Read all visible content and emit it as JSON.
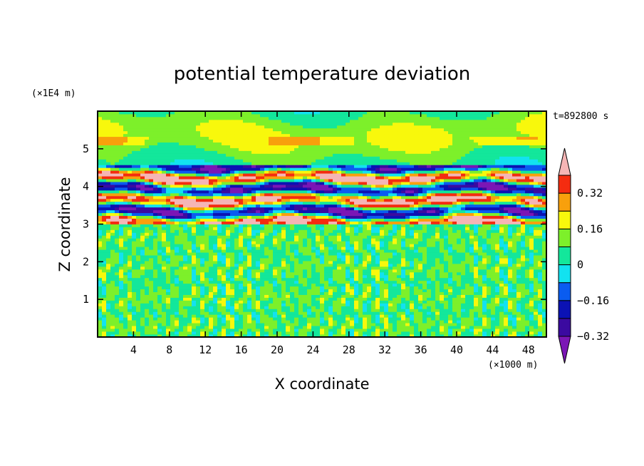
{
  "chart_data": {
    "type": "heatmap",
    "title": "potential temperature deviation",
    "xlabel": "X coordinate",
    "ylabel": "Z coordinate",
    "x_unit": "(×1000 m)",
    "y_unit": "(×1E4 m)",
    "time_label": "t=892800 s",
    "xlim": [
      0,
      50
    ],
    "ylim": [
      0,
      6
    ],
    "x_ticks": [
      4,
      8,
      12,
      16,
      20,
      24,
      28,
      32,
      36,
      40,
      44,
      48
    ],
    "y_ticks": [
      1,
      2,
      3,
      4,
      5
    ],
    "colorbar": {
      "levels": [
        -0.4,
        -0.32,
        -0.24,
        -0.16,
        -0.08,
        0,
        0.08,
        0.16,
        0.24,
        0.32,
        0.4
      ],
      "tick_labels": [
        {
          "value": 0.32,
          "label": "0.32"
        },
        {
          "value": 0.16,
          "label": "0.16"
        },
        {
          "value": 0,
          "label": "0"
        },
        {
          "value": -0.16,
          "label": "−0.16"
        },
        {
          "value": -0.32,
          "label": "−0.32"
        }
      ],
      "colors": [
        "#7b16b5",
        "#3b0aa0",
        "#0b12b4",
        "#0a5cf0",
        "#12e2f0",
        "#13e79b",
        "#7df02a",
        "#f8f80c",
        "#f8a00c",
        "#f42c10",
        "#f5b5b5"
      ],
      "extend": "both"
    },
    "structure": [
      {
        "z_range": [
          0,
          3.0
        ],
        "pattern": "small-scale noise",
        "value_range": [
          -0.08,
          0.08
        ]
      },
      {
        "z_range": [
          3.0,
          4.5
        ],
        "pattern": "layered strong fluctuations",
        "value_range": [
          -0.48,
          0.48
        ]
      },
      {
        "z_range": [
          4.5,
          6.0
        ],
        "pattern": "smooth weak fluctuations",
        "value_range": [
          -0.16,
          0.24
        ]
      }
    ]
  }
}
